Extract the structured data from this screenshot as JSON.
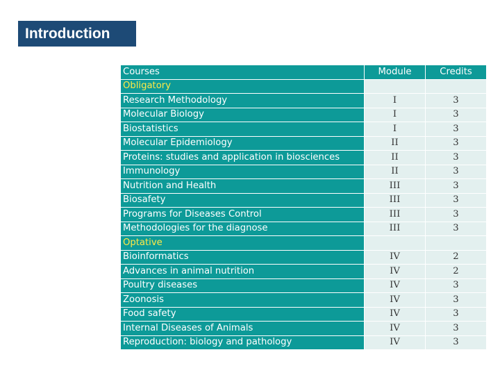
{
  "slide": {
    "title": "Introduction"
  },
  "table": {
    "headers": {
      "course": "Courses",
      "module": "Module",
      "credits": "Credits"
    },
    "sections": [
      {
        "name": "Obligatory",
        "courses": [
          {
            "name": "Research Methodology",
            "module": "I",
            "credits": "3"
          },
          {
            "name": "Molecular Biology",
            "module": "I",
            "credits": "3"
          },
          {
            "name": "Biostatistics",
            "module": "I",
            "credits": "3"
          },
          {
            "name": "Molecular Epidemiology",
            "module": "II",
            "credits": "3"
          },
          {
            "name": "Proteins: studies and application in biosciences",
            "module": "II",
            "credits": "3"
          },
          {
            "name": "Immunology",
            "module": "II",
            "credits": "3"
          },
          {
            "name": "Nutrition and Health",
            "module": "III",
            "credits": "3"
          },
          {
            "name": "Biosafety",
            "module": "III",
            "credits": "3"
          },
          {
            "name": "Programs for Diseases Control",
            "module": "III",
            "credits": "3"
          },
          {
            "name": "Methodologies for the diagnose",
            "module": "III",
            "credits": "3"
          }
        ]
      },
      {
        "name": "Optative",
        "courses": [
          {
            "name": "Bioinformatics",
            "module": "IV",
            "credits": "2"
          },
          {
            "name": "Advances in animal nutrition",
            "module": "IV",
            "credits": "2"
          },
          {
            "name": "Poultry diseases",
            "module": "IV",
            "credits": "3"
          },
          {
            "name": "Zoonosis",
            "module": "IV",
            "credits": "3"
          },
          {
            "name": "Food safety",
            "module": "IV",
            "credits": "3"
          },
          {
            "name": "Internal Diseases of Animals",
            "module": "IV",
            "credits": "3"
          },
          {
            "name": "Reproduction: biology and pathology",
            "module": "IV",
            "credits": "3"
          }
        ]
      }
    ]
  }
}
